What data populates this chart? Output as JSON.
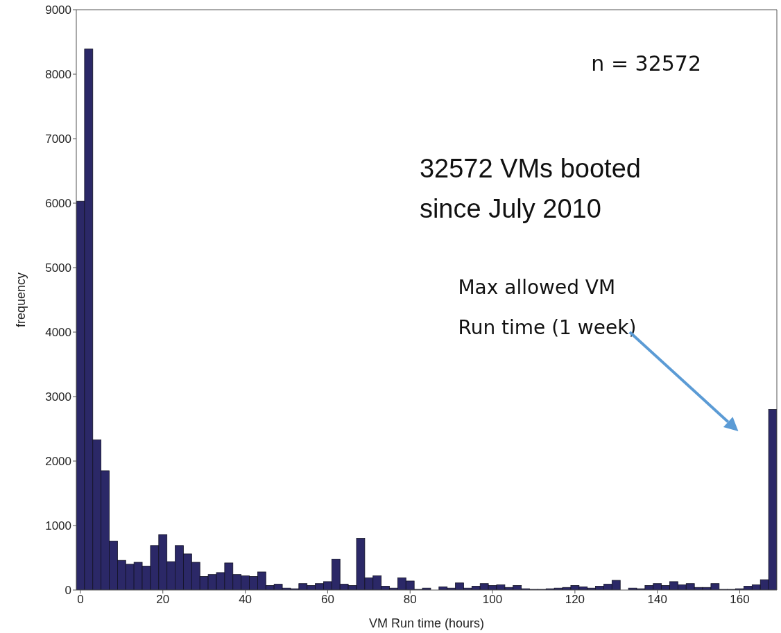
{
  "chart_data": {
    "type": "histogram",
    "xlabel": "VM Run time (hours)",
    "ylabel": "frequency",
    "color": "#2b2867",
    "bins": [
      -1,
      1,
      3,
      5,
      7,
      9,
      11,
      13,
      15,
      17,
      19,
      21,
      23,
      25,
      27,
      29,
      31,
      33,
      35,
      37,
      39,
      41,
      43,
      45,
      47,
      49,
      51,
      53,
      55,
      57,
      59,
      61,
      63,
      65,
      67,
      69,
      71,
      73,
      75,
      77,
      79,
      81,
      83,
      85,
      87,
      89,
      91,
      93,
      95,
      97,
      99,
      101,
      103,
      105,
      107,
      109,
      111,
      113,
      115,
      117,
      119,
      121,
      123,
      125,
      127,
      129,
      131,
      133,
      135,
      137,
      139,
      141,
      143,
      145,
      147,
      149,
      151,
      153,
      155,
      157,
      159,
      161,
      163,
      165,
      167,
      169
    ],
    "values": [
      6030,
      8390,
      2330,
      1850,
      760,
      460,
      400,
      430,
      370,
      690,
      860,
      440,
      690,
      560,
      430,
      210,
      240,
      270,
      420,
      240,
      220,
      210,
      280,
      70,
      90,
      30,
      20,
      100,
      70,
      100,
      130,
      480,
      90,
      70,
      800,
      190,
      220,
      60,
      30,
      190,
      140,
      10,
      30,
      0,
      50,
      30,
      110,
      30,
      60,
      100,
      70,
      80,
      40,
      70,
      20,
      10,
      10,
      20,
      30,
      40,
      70,
      50,
      30,
      60,
      90,
      150,
      0,
      30,
      20,
      70,
      100,
      70,
      130,
      80,
      100,
      40,
      40,
      100,
      10,
      10,
      20,
      60,
      80,
      160,
      2800
    ],
    "xlim": [
      -1,
      169
    ],
    "ylim": [
      0,
      9000
    ],
    "xticks": [
      0,
      20,
      40,
      60,
      80,
      100,
      120,
      140,
      160
    ],
    "yticks": [
      0,
      1000,
      2000,
      3000,
      4000,
      5000,
      6000,
      7000,
      8000,
      9000
    ],
    "annotations": [
      "n = 32572",
      "32572 VMs booted\nsince July 2010",
      "Max allowed VM\nRun time (1 week)"
    ]
  }
}
